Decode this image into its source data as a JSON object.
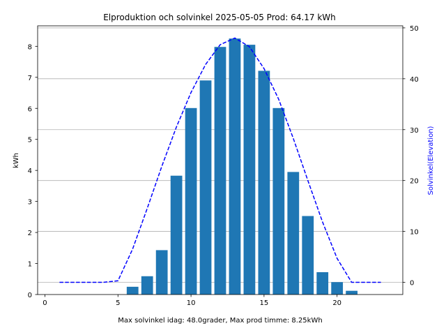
{
  "chart_data": {
    "type": "bar",
    "title": "Elproduktion och solvinkel 2025-05-05 Prod: 64.17 kWh",
    "xlabel": "Max solvinkel idag: 48.0grader, Max prod timme: 8.25kWh",
    "ylabel": "kWh",
    "ylabel_right": "Solvinkel(Elevation)",
    "xlim": [
      -0.5,
      24.5
    ],
    "ylim": [
      0,
      8.66
    ],
    "ylim_right": [
      -2.4,
      50.4
    ],
    "x_ticks": [
      0,
      5,
      10,
      15,
      20
    ],
    "y_ticks": [
      0,
      1,
      2,
      3,
      4,
      5,
      6,
      7,
      8
    ],
    "y_ticks_right": [
      0,
      10,
      20,
      30,
      40,
      50
    ],
    "grid": "horizontal lines at right-axis ticks",
    "bars": {
      "color": "#1f77b4",
      "x": [
        6,
        7,
        8,
        9,
        10,
        11,
        12,
        13,
        14,
        15,
        16,
        17,
        18,
        19,
        20,
        21
      ],
      "values": [
        0.25,
        0.59,
        1.43,
        3.83,
        6.01,
        6.9,
        7.98,
        8.25,
        8.05,
        7.21,
        6.01,
        3.95,
        2.53,
        0.72,
        0.4,
        0.12
      ]
    },
    "line": {
      "color": "#0000ff",
      "style": "dashed",
      "x": [
        1,
        2,
        3,
        4,
        5,
        6,
        7,
        8,
        9,
        10,
        11,
        12,
        13,
        14,
        15,
        16,
        17,
        18,
        19,
        20,
        21,
        22,
        23
      ],
      "values": [
        0,
        0,
        0,
        0,
        0.3,
        6.5,
        14.5,
        22.8,
        30.5,
        37.3,
        42.8,
        46.7,
        48.0,
        46.3,
        42.0,
        36.0,
        28.3,
        20.0,
        11.9,
        4.7,
        0,
        0,
        0
      ]
    }
  }
}
